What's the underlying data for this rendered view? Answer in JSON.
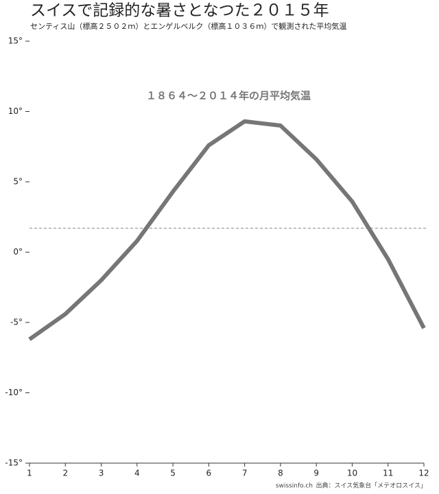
{
  "chart_data": {
    "type": "line",
    "title": "スイスで記録的な暑さとなつた２０１５年",
    "subtitle": "センティス山（標高２５０２ｍ）とエンゲルベルク（標高１０３６ｍ）で観測された平均気温",
    "annotation": "１８６４〜２０１４年の月平均気温",
    "source_site": "swissinfo.ch",
    "source": "出典：スイス気象台「メテオロスイス」",
    "x": [
      1,
      2,
      3,
      4,
      5,
      6,
      7,
      8,
      9,
      10,
      11,
      12
    ],
    "series": [
      {
        "color": "#767676",
        "values": [
          -6.2,
          -4.4,
          -2.0,
          0.8,
          4.3,
          7.6,
          9.3,
          9.0,
          6.6,
          3.6,
          -0.5,
          -5.4
        ]
      }
    ],
    "reference_line": 1.7,
    "xlim": [
      1,
      12
    ],
    "xticks": [
      1,
      2,
      3,
      4,
      5,
      6,
      7,
      8,
      9,
      10,
      11,
      12
    ],
    "ylim": [
      -15,
      15
    ],
    "yticks": [
      {
        "value": -15,
        "label": "-15°"
      },
      {
        "value": -10,
        "label": "-10°"
      },
      {
        "value": -5,
        "label": "-5°"
      },
      {
        "value": 0,
        "label": "0°"
      },
      {
        "value": 5,
        "label": "5°"
      },
      {
        "value": 10,
        "label": "10°"
      },
      {
        "value": 15,
        "label": "15°"
      }
    ]
  }
}
